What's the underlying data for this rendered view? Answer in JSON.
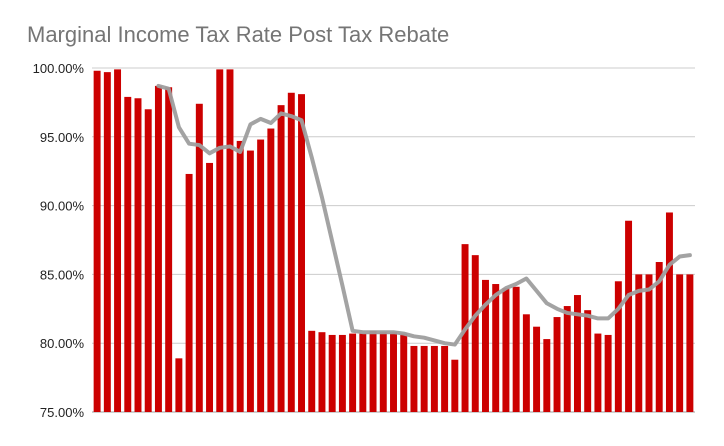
{
  "chart_data": {
    "type": "bar",
    "title": "Marginal Income Tax Rate Post Tax Rebate",
    "xlabel": "",
    "ylabel": "",
    "ylim": [
      75,
      100
    ],
    "ytick_values": [
      75,
      80,
      85,
      90,
      95,
      100
    ],
    "yticks": [
      "75.00%",
      "80.00%",
      "85.00%",
      "90.00%",
      "95.00%",
      "100.00%"
    ],
    "grid": true,
    "legend": "none",
    "bar_color": "#cc0000",
    "line_color": "#9e9e9e",
    "series": [
      {
        "type": "bar",
        "values": [
          99.8,
          99.7,
          99.9,
          97.9,
          97.8,
          97.0,
          98.7,
          98.6,
          78.9,
          92.3,
          97.4,
          93.1,
          99.9,
          99.9,
          94.7,
          94.0,
          94.8,
          95.6,
          97.3,
          98.2,
          98.1,
          80.9,
          80.8,
          80.6,
          80.6,
          80.7,
          80.7,
          80.9,
          80.8,
          80.8,
          80.7,
          79.8,
          79.8,
          79.8,
          79.8,
          78.8,
          87.2,
          86.4,
          84.6,
          84.3,
          84.0,
          84.1,
          82.1,
          81.2,
          80.3,
          81.9,
          82.7,
          83.5,
          82.4,
          80.7,
          80.6,
          84.5,
          88.9,
          85.0,
          85.0,
          85.9,
          89.5,
          85.0,
          85.0
        ]
      },
      {
        "type": "line",
        "values": [
          null,
          null,
          null,
          null,
          null,
          null,
          98.7,
          98.5,
          95.7,
          94.5,
          94.4,
          93.8,
          94.2,
          94.3,
          93.9,
          95.9,
          96.3,
          96.0,
          96.7,
          96.5,
          96.2,
          93.5,
          90.6,
          87.4,
          84.2,
          80.9,
          80.8,
          80.8,
          80.8,
          80.8,
          80.7,
          80.5,
          80.4,
          80.2,
          80.0,
          79.9,
          81.0,
          82.0,
          82.8,
          83.5,
          84.0,
          84.3,
          84.7,
          83.8,
          82.9,
          82.5,
          82.2,
          82.1,
          82.0,
          81.8,
          81.8,
          82.5,
          83.5,
          83.8,
          83.9,
          84.5,
          85.7,
          86.3,
          86.4
        ]
      }
    ]
  }
}
